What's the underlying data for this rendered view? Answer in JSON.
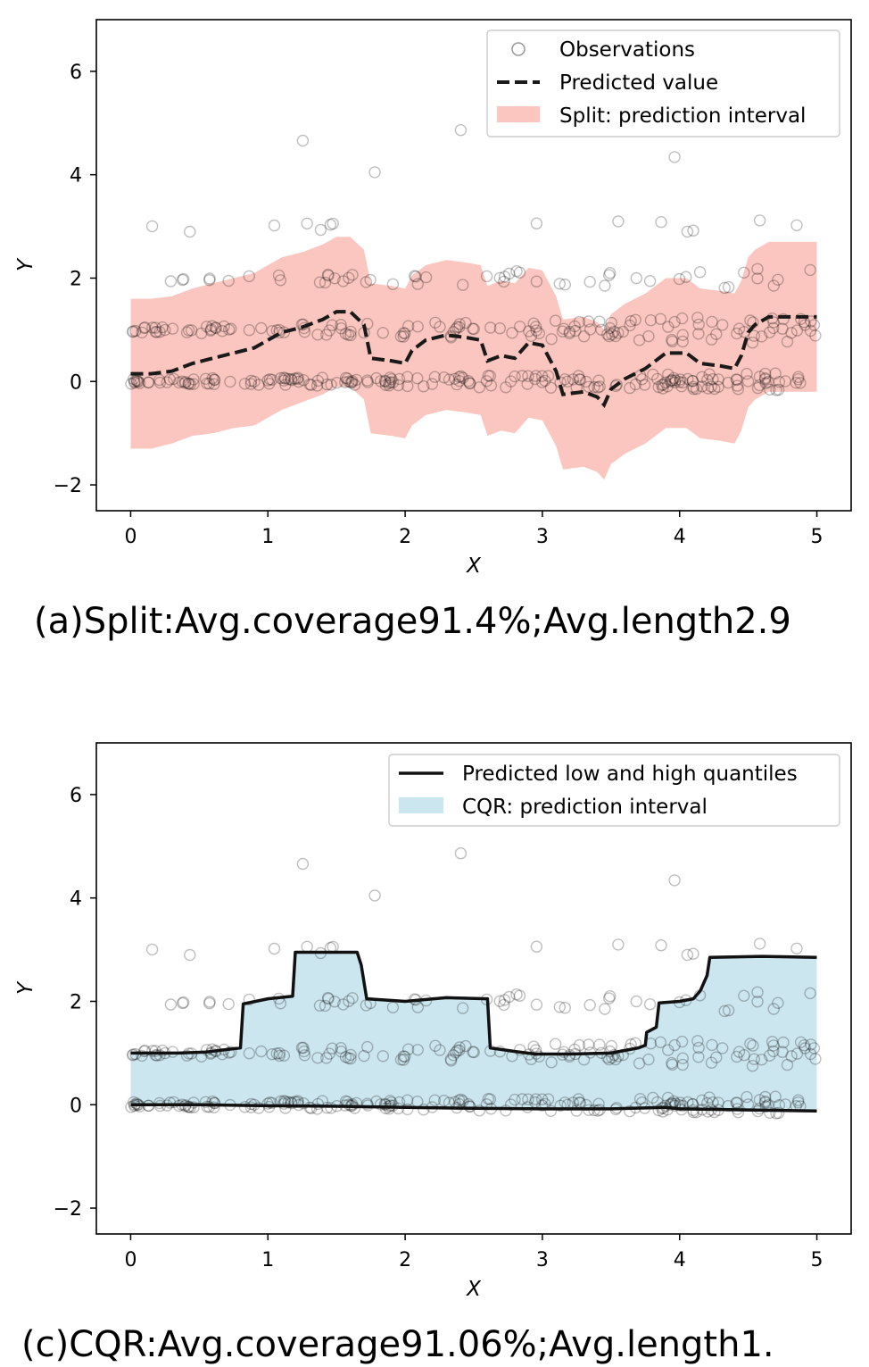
{
  "chart_data": [
    {
      "type": "scatter",
      "panel": "(a)",
      "caption": "(a)Split:Avg.coverage91.4%;Avg.length2.9",
      "xlabel": "X",
      "ylabel": "Y",
      "xlim": [
        -0.25,
        5.25
      ],
      "ylim": [
        -2.5,
        7.0
      ],
      "xticks": [
        0,
        1,
        2,
        3,
        4,
        5
      ],
      "yticks": [
        -2,
        0,
        2,
        4,
        6
      ],
      "xtick_labels": [
        "0",
        "1",
        "2",
        "3",
        "4",
        "5"
      ],
      "ytick_labels": [
        "−2",
        "0",
        "2",
        "4",
        "6"
      ],
      "legend_position": "top-right",
      "legend": [
        "Observations",
        "Predicted value",
        "Split: prediction interval"
      ],
      "interval_color": "#fbc6bf",
      "predicted_value": {
        "x": [
          0,
          0.15,
          0.3,
          0.45,
          0.6,
          0.75,
          0.9,
          1.0,
          1.1,
          1.25,
          1.4,
          1.5,
          1.6,
          1.7,
          1.75,
          1.9,
          2.0,
          2.05,
          2.15,
          2.3,
          2.45,
          2.55,
          2.6,
          2.7,
          2.8,
          2.9,
          3.0,
          3.1,
          3.15,
          3.3,
          3.4,
          3.45,
          3.5,
          3.6,
          3.75,
          3.9,
          4.05,
          4.15,
          4.3,
          4.4,
          4.45,
          4.5,
          4.55,
          4.65,
          4.75,
          4.85,
          5.0
        ],
        "y": [
          0.15,
          0.15,
          0.2,
          0.35,
          0.45,
          0.55,
          0.65,
          0.8,
          0.95,
          1.05,
          1.2,
          1.35,
          1.35,
          1.1,
          0.45,
          0.4,
          0.35,
          0.6,
          0.8,
          0.9,
          0.85,
          0.8,
          0.4,
          0.5,
          0.45,
          0.75,
          0.7,
          0.2,
          -0.25,
          -0.2,
          -0.3,
          -0.45,
          -0.15,
          0.05,
          0.25,
          0.55,
          0.55,
          0.35,
          0.3,
          0.25,
          0.5,
          0.95,
          1.1,
          1.25,
          1.25,
          1.25,
          1.25
        ]
      },
      "interval_low": [
        -1.3,
        -1.3,
        -1.2,
        -1.05,
        -1.0,
        -0.9,
        -0.85,
        -0.7,
        -0.55,
        -0.4,
        -0.25,
        -0.1,
        -0.1,
        -0.35,
        -1.0,
        -1.05,
        -1.1,
        -0.85,
        -0.65,
        -0.55,
        -0.6,
        -0.65,
        -1.05,
        -0.95,
        -1.0,
        -0.7,
        -0.75,
        -1.25,
        -1.7,
        -1.65,
        -1.75,
        -1.9,
        -1.6,
        -1.4,
        -1.2,
        -0.9,
        -0.9,
        -1.1,
        -1.15,
        -1.2,
        -0.95,
        -0.5,
        -0.35,
        -0.2,
        -0.2,
        -0.2,
        -0.2
      ],
      "interval_high": [
        1.6,
        1.6,
        1.65,
        1.8,
        1.9,
        2.0,
        2.1,
        2.25,
        2.4,
        2.5,
        2.65,
        2.8,
        2.8,
        2.55,
        1.9,
        1.85,
        1.8,
        2.05,
        2.25,
        2.35,
        2.3,
        2.25,
        1.85,
        1.95,
        1.9,
        2.2,
        2.15,
        1.65,
        1.2,
        1.25,
        1.15,
        1.0,
        1.3,
        1.5,
        1.7,
        2.0,
        2.0,
        1.8,
        1.75,
        1.7,
        1.95,
        2.4,
        2.55,
        2.7,
        2.7,
        2.7,
        2.7
      ]
    },
    {
      "type": "scatter",
      "panel": "(c)",
      "caption": "(c)CQR:Avg.coverage91.06%;Avg.length1.",
      "xlabel": "X",
      "ylabel": "Y",
      "xlim": [
        -0.25,
        5.25
      ],
      "ylim": [
        -2.5,
        7.0
      ],
      "xticks": [
        0,
        1,
        2,
        3,
        4,
        5
      ],
      "yticks": [
        -2,
        0,
        2,
        4,
        6
      ],
      "xtick_labels": [
        "0",
        "1",
        "2",
        "3",
        "4",
        "5"
      ],
      "ytick_labels": [
        "−2",
        "0",
        "2",
        "4",
        "6"
      ],
      "legend_position": "top-right",
      "legend": [
        "Predicted low and high quantiles",
        "CQR: prediction interval"
      ],
      "interval_color": "#cce6ef",
      "low_quantile": {
        "x": [
          0,
          0.5,
          1.0,
          1.5,
          2.0,
          2.5,
          3.0,
          3.5,
          3.9,
          4.0,
          4.5,
          5.0
        ],
        "y": [
          0.0,
          0.0,
          -0.02,
          -0.03,
          -0.05,
          -0.07,
          -0.08,
          -0.08,
          -0.05,
          -0.08,
          -0.1,
          -0.12
        ]
      },
      "high_quantile": {
        "x": [
          0,
          0.35,
          0.55,
          0.8,
          0.82,
          1.0,
          1.18,
          1.2,
          1.65,
          1.68,
          1.72,
          2.0,
          2.3,
          2.6,
          2.62,
          2.8,
          2.95,
          3.2,
          3.5,
          3.6,
          3.7,
          3.75,
          3.76,
          3.83,
          3.85,
          4.0,
          4.1,
          4.15,
          4.2,
          4.22,
          4.6,
          5.0
        ],
        "y": [
          1.0,
          1.0,
          1.02,
          1.1,
          1.95,
          2.05,
          2.1,
          2.95,
          2.95,
          2.7,
          2.05,
          2.0,
          2.07,
          2.05,
          1.1,
          1.03,
          0.98,
          0.98,
          1.0,
          1.05,
          1.1,
          1.15,
          1.4,
          1.5,
          1.97,
          2.0,
          2.05,
          2.2,
          2.5,
          2.85,
          2.87,
          2.85
        ]
      }
    }
  ]
}
